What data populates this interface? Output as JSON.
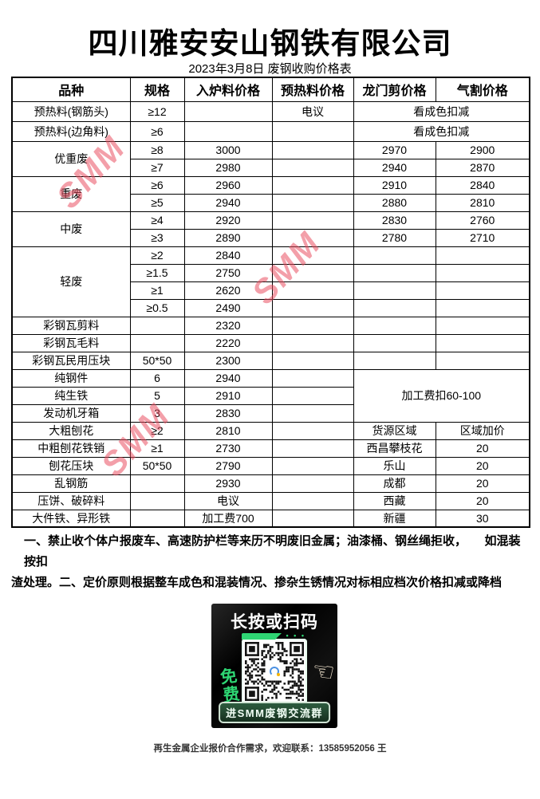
{
  "title": "四川雅安安山钢铁有限公司",
  "subtitle": "2023年3月8日 废钢收购价格表",
  "watermark": {
    "text": "SMM",
    "color": "#e94b5e"
  },
  "accent_green": "#2ed573",
  "table": {
    "headers": [
      "品种",
      "规格",
      "入炉料价格",
      "预热料价格",
      "龙门剪价格",
      "气割价格"
    ],
    "rows": [
      {
        "variety": "预热料(钢筋头)",
        "spec": "≥12",
        "furnace": "",
        "preheat": "电议",
        "span": "看成色扣减"
      },
      {
        "variety": "预热料(边角料)",
        "spec": "≥6",
        "furnace": "",
        "preheat": "",
        "span": "看成色扣减"
      },
      {
        "variety": "优重废",
        "spec": "≥8",
        "furnace": "3000",
        "preheat": "",
        "gantry": "2970",
        "cut": "2900"
      },
      {
        "spec": "≥7",
        "furnace": "2980",
        "preheat": "",
        "gantry": "2940",
        "cut": "2870"
      },
      {
        "variety": "重废",
        "spec": "≥6",
        "furnace": "2960",
        "preheat": "",
        "gantry": "2910",
        "cut": "2840"
      },
      {
        "spec": "≥5",
        "furnace": "2940",
        "preheat": "",
        "gantry": "2880",
        "cut": "2810"
      },
      {
        "variety": "中废",
        "spec": "≥4",
        "furnace": "2920",
        "preheat": "",
        "gantry": "2830",
        "cut": "2760"
      },
      {
        "spec": "≥3",
        "furnace": "2890",
        "preheat": "",
        "gantry": "2780",
        "cut": "2710"
      },
      {
        "variety": "轻废",
        "spec": "≥2",
        "furnace": "2840",
        "preheat": "",
        "gantry": "",
        "cut": ""
      },
      {
        "spec": "≥1.5",
        "furnace": "2750",
        "preheat": "",
        "gantry": "",
        "cut": ""
      },
      {
        "spec": "≥1",
        "furnace": "2620",
        "preheat": "",
        "gantry": "",
        "cut": ""
      },
      {
        "spec": "≥0.5",
        "furnace": "2490",
        "preheat": "",
        "gantry": "",
        "cut": ""
      },
      {
        "variety": "彩钢瓦剪料",
        "spec": "",
        "furnace": "2320",
        "preheat": "",
        "gantry": "",
        "cut": ""
      },
      {
        "variety": "彩钢瓦毛料",
        "spec": "",
        "furnace": "2220",
        "preheat": "",
        "gantry": "",
        "cut": ""
      },
      {
        "variety": "彩钢瓦民用压块",
        "spec": "50*50",
        "furnace": "2300",
        "preheat": "",
        "gantry": "",
        "cut": ""
      },
      {
        "variety": "纯钢件",
        "spec": "6",
        "furnace": "2940",
        "preheat": "",
        "fee": "加工费扣60-100"
      },
      {
        "variety": "纯生铁",
        "spec": "5",
        "furnace": "2910",
        "preheat": ""
      },
      {
        "variety": "发动机牙箱",
        "spec": "3",
        "furnace": "2830",
        "preheat": ""
      },
      {
        "variety": "大粗刨花",
        "spec": "≥2",
        "furnace": "2810",
        "preheat": "",
        "gantry": "货源区域",
        "cut": "区域加价"
      },
      {
        "variety": "中粗刨花铁销",
        "spec": "≥1",
        "furnace": "2730",
        "preheat": "",
        "gantry": "西昌攀枝花",
        "cut": "20"
      },
      {
        "variety": "刨花压块",
        "spec": "50*50",
        "furnace": "2790",
        "preheat": "",
        "gantry": "乐山",
        "cut": "20"
      },
      {
        "variety": "乱钢筋",
        "spec": "",
        "furnace": "2930",
        "preheat": "",
        "gantry": "成都",
        "cut": "20"
      },
      {
        "variety": "压饼、破碎料",
        "spec": "",
        "furnace": "电议",
        "preheat": "",
        "gantry": "西藏",
        "cut": "20"
      },
      {
        "variety": "大件铁、异形铁",
        "spec": "",
        "furnace": "加工费700",
        "preheat": "",
        "gantry": "新疆",
        "cut": "30"
      }
    ]
  },
  "notes": {
    "line1": "一、禁止收个体户报废车、高速防护栏等来历不明废旧金属；油漆桶、钢丝绳拒收，　　如混装按扣",
    "line2": "渣处理。二、定价原则根据整车成色和混装情况、掺杂生锈情况对标相应档次价格扣减或降档"
  },
  "qr": {
    "headline": "长按或扫码",
    "free_label": "免费",
    "arrow": "↓",
    "hand_icon": "☜",
    "dots": "• • •",
    "pill_label": "进SMM废钢交流群"
  },
  "caption": "再生金属企业报价合作需求，欢迎联系：13585952056 王"
}
